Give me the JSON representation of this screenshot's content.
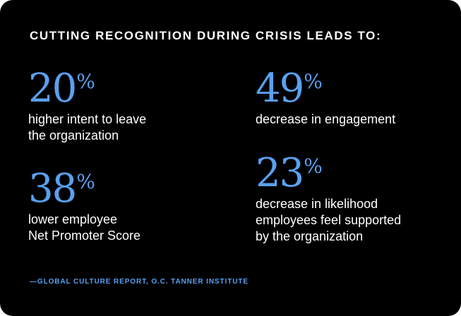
{
  "heading": "CUTTING RECOGNITION DURING CRISIS LEADS TO:",
  "colors": {
    "background": "#000000",
    "accent": "#5aa0f0",
    "text": "#ffffff"
  },
  "stats": [
    {
      "value": "20",
      "unit": "%",
      "description_lines": [
        "higher intent to leave",
        "the organization"
      ]
    },
    {
      "value": "38",
      "unit": "%",
      "description_lines": [
        "lower employee",
        "Net Promoter Score"
      ]
    },
    {
      "value": "49",
      "unit": "%",
      "description_lines": [
        "decrease in engagement"
      ]
    },
    {
      "value": "23",
      "unit": "%",
      "description_lines": [
        "decrease in likelihood",
        "employees feel supported",
        "by the organization"
      ]
    }
  ],
  "source": "—GLOBAL CULTURE REPORT, O.C. TANNER INSTITUTE"
}
